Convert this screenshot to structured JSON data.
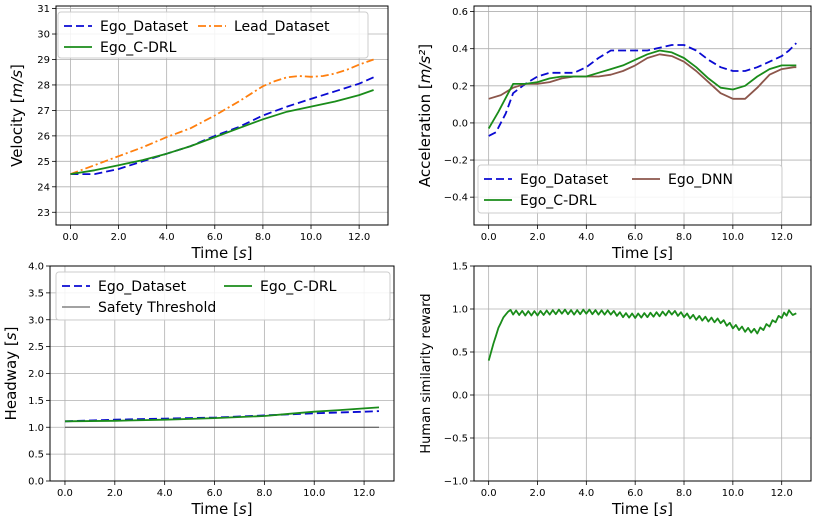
{
  "chart_data": [
    {
      "id": "velocity",
      "type": "line",
      "xlabel": "Time",
      "xunit": "s",
      "ylabel": "Velocity",
      "yunit": "m/s",
      "xlim": [
        -0.6,
        13.2
      ],
      "ylim": [
        22.5,
        31.1
      ],
      "xticks": [
        0,
        2,
        4,
        6,
        8,
        10,
        12
      ],
      "xtick_labels": [
        "0.0",
        "2.0",
        "4.0",
        "6.0",
        "8.0",
        "10.0",
        "12.0"
      ],
      "yticks": [
        23,
        24,
        25,
        26,
        27,
        28,
        29,
        30,
        31
      ],
      "ytick_labels": [
        "23",
        "24",
        "25",
        "26",
        "27",
        "28",
        "29",
        "30",
        "31"
      ],
      "grid": true,
      "legend": {
        "position": "top-left",
        "columns": 2
      },
      "series": [
        {
          "name": "Ego_Dataset",
          "color": "#0a0ad2",
          "style": "dashed",
          "x": [
            0,
            1,
            2,
            3,
            4,
            5,
            6,
            7,
            8,
            9,
            10,
            11,
            12,
            12.6
          ],
          "y": [
            24.5,
            24.5,
            24.7,
            25.0,
            25.3,
            25.6,
            26.0,
            26.35,
            26.8,
            27.15,
            27.45,
            27.75,
            28.05,
            28.3
          ]
        },
        {
          "name": "Lead_Dataset",
          "color": "#ff7f0e",
          "style": "dashdot",
          "x": [
            0,
            1,
            2,
            3,
            4,
            5,
            6,
            7,
            8,
            8.5,
            9,
            9.5,
            10,
            10.5,
            11,
            11.5,
            12,
            12.6
          ],
          "y": [
            24.5,
            24.85,
            25.2,
            25.55,
            25.95,
            26.3,
            26.8,
            27.35,
            27.95,
            28.15,
            28.3,
            28.35,
            28.32,
            28.35,
            28.45,
            28.6,
            28.8,
            29.0
          ]
        },
        {
          "name": "Ego_C-DRL",
          "color": "#1a8c1a",
          "style": "solid",
          "x": [
            0,
            1,
            2,
            3,
            4,
            5,
            6,
            7,
            8,
            9,
            10,
            11,
            12,
            12.6
          ],
          "y": [
            24.5,
            24.65,
            24.85,
            25.05,
            25.3,
            25.6,
            25.95,
            26.3,
            26.65,
            26.95,
            27.15,
            27.35,
            27.6,
            27.8
          ]
        }
      ]
    },
    {
      "id": "acceleration",
      "type": "line",
      "xlabel": "Time",
      "xunit": "s",
      "ylabel": "Acceleration",
      "yunit": "m/s²",
      "xlim": [
        -0.6,
        13.2
      ],
      "ylim": [
        -0.55,
        0.63
      ],
      "xticks": [
        0,
        2,
        4,
        6,
        8,
        10,
        12
      ],
      "xtick_labels": [
        "0.0",
        "2.0",
        "4.0",
        "6.0",
        "8.0",
        "10.0",
        "12.0"
      ],
      "yticks": [
        -0.4,
        -0.2,
        0.0,
        0.2,
        0.4,
        0.6
      ],
      "ytick_labels": [
        "−0.4",
        "−0.2",
        "0.0",
        "0.2",
        "0.4",
        "0.6"
      ],
      "grid": true,
      "legend": {
        "position": "lower-left",
        "columns": 2
      },
      "series": [
        {
          "name": "Ego_Dataset",
          "color": "#0a0ad2",
          "style": "dashed",
          "x": [
            0,
            0.3,
            0.7,
            1.0,
            1.5,
            2.0,
            2.5,
            3.0,
            3.5,
            4.0,
            4.5,
            5.0,
            5.5,
            6.0,
            6.5,
            7.0,
            7.5,
            8.0,
            8.5,
            9.0,
            9.5,
            10.0,
            10.5,
            11.0,
            11.5,
            12.0,
            12.3,
            12.6
          ],
          "y": [
            -0.07,
            -0.05,
            0.05,
            0.16,
            0.21,
            0.25,
            0.27,
            0.27,
            0.27,
            0.3,
            0.35,
            0.39,
            0.39,
            0.39,
            0.39,
            0.405,
            0.42,
            0.42,
            0.39,
            0.34,
            0.3,
            0.28,
            0.28,
            0.3,
            0.33,
            0.36,
            0.39,
            0.43
          ]
        },
        {
          "name": "Ego_DNN",
          "color": "#8c564b",
          "style": "solid",
          "x": [
            0,
            0.5,
            1.0,
            1.5,
            2.0,
            2.5,
            3.0,
            3.5,
            4.0,
            4.5,
            5.0,
            5.5,
            6.0,
            6.5,
            7.0,
            7.5,
            8.0,
            8.5,
            9.0,
            9.5,
            10.0,
            10.5,
            11.0,
            11.5,
            12.0,
            12.5,
            12.6
          ],
          "y": [
            0.13,
            0.15,
            0.19,
            0.21,
            0.21,
            0.22,
            0.24,
            0.25,
            0.25,
            0.25,
            0.26,
            0.28,
            0.31,
            0.35,
            0.37,
            0.36,
            0.33,
            0.28,
            0.22,
            0.16,
            0.13,
            0.13,
            0.19,
            0.26,
            0.29,
            0.3,
            0.3
          ]
        },
        {
          "name": "Ego_C-DRL",
          "color": "#1a8c1a",
          "style": "solid",
          "x": [
            0,
            0.4,
            0.8,
            1.0,
            1.5,
            2.0,
            2.5,
            3.0,
            3.5,
            4.0,
            4.5,
            5.0,
            5.5,
            6.0,
            6.5,
            7.0,
            7.5,
            8.0,
            8.5,
            9.0,
            9.5,
            10.0,
            10.5,
            11.0,
            11.5,
            12.0,
            12.5,
            12.6
          ],
          "y": [
            -0.03,
            0.06,
            0.16,
            0.21,
            0.21,
            0.22,
            0.24,
            0.25,
            0.25,
            0.25,
            0.27,
            0.29,
            0.31,
            0.34,
            0.37,
            0.39,
            0.38,
            0.35,
            0.3,
            0.24,
            0.19,
            0.18,
            0.2,
            0.25,
            0.29,
            0.31,
            0.31,
            0.31
          ]
        }
      ]
    },
    {
      "id": "headway",
      "type": "line",
      "xlabel": "Time",
      "xunit": "s",
      "ylabel": "Headway",
      "yunit": "s",
      "xlim": [
        -0.6,
        13.2
      ],
      "ylim": [
        0.0,
        4.0
      ],
      "xticks": [
        0,
        2,
        4,
        6,
        8,
        10,
        12
      ],
      "xtick_labels": [
        "0.0",
        "2.0",
        "4.0",
        "6.0",
        "8.0",
        "10.0",
        "12.0"
      ],
      "yticks": [
        0.0,
        0.5,
        1.0,
        1.5,
        2.0,
        2.5,
        3.0,
        3.5,
        4.0
      ],
      "ytick_labels": [
        "0.0",
        "0.5",
        "1.0",
        "1.5",
        "2.0",
        "2.5",
        "3.0",
        "3.5",
        "4.0"
      ],
      "grid": true,
      "legend": {
        "position": "top",
        "columns": 2
      },
      "series": [
        {
          "name": "Ego_Dataset",
          "color": "#0a0ad2",
          "style": "dashed",
          "x": [
            0,
            2,
            4,
            6,
            8,
            10,
            12,
            12.6
          ],
          "y": [
            1.11,
            1.14,
            1.16,
            1.18,
            1.22,
            1.26,
            1.29,
            1.3
          ]
        },
        {
          "name": "Ego_C-DRL",
          "color": "#1a8c1a",
          "style": "solid",
          "x": [
            0,
            2,
            4,
            6,
            8,
            9,
            10,
            11,
            12,
            12.6
          ],
          "y": [
            1.11,
            1.12,
            1.14,
            1.17,
            1.21,
            1.25,
            1.29,
            1.32,
            1.35,
            1.37
          ]
        },
        {
          "name": "Safety Threshold",
          "color": "#444444",
          "style": "thin",
          "x": [
            0,
            12.6
          ],
          "y": [
            1.0,
            1.0
          ]
        }
      ]
    },
    {
      "id": "reward",
      "type": "line",
      "xlabel": "Time",
      "xunit": "s",
      "ylabel": "Human similarity reward",
      "xlim": [
        -0.6,
        13.2
      ],
      "ylim": [
        -1.0,
        1.5
      ],
      "xticks": [
        0,
        2,
        4,
        6,
        8,
        10,
        12
      ],
      "xtick_labels": [
        "0.0",
        "2.0",
        "4.0",
        "6.0",
        "8.0",
        "10.0",
        "12.0"
      ],
      "yticks": [
        -1.0,
        -0.5,
        0.0,
        0.5,
        1.0,
        1.5
      ],
      "ytick_labels": [
        "−1.0",
        "−0.5",
        "0.0",
        "0.5",
        "1.0",
        "1.5"
      ],
      "grid": true,
      "series": [
        {
          "name": "Human similarity reward",
          "color": "#1a8c1a",
          "style": "solid",
          "x": [
            0,
            0.2,
            0.4,
            0.6,
            0.8,
            1.0,
            1.5,
            2.0,
            2.5,
            3.0,
            3.5,
            4.0,
            4.5,
            5.0,
            5.5,
            6.0,
            6.5,
            7.0,
            7.5,
            8.0,
            8.5,
            9.0,
            9.5,
            10.0,
            10.5,
            11.0,
            11.5,
            12.0,
            12.3,
            12.6
          ],
          "y": [
            0.4,
            0.6,
            0.78,
            0.9,
            0.97,
            0.96,
            0.95,
            0.95,
            0.96,
            0.97,
            0.96,
            0.97,
            0.96,
            0.96,
            0.93,
            0.92,
            0.93,
            0.94,
            0.96,
            0.93,
            0.9,
            0.88,
            0.86,
            0.8,
            0.76,
            0.74,
            0.82,
            0.92,
            0.96,
            0.95
          ],
          "jitter": 0.025
        }
      ]
    }
  ],
  "axis_unit_suffix": "[s]"
}
